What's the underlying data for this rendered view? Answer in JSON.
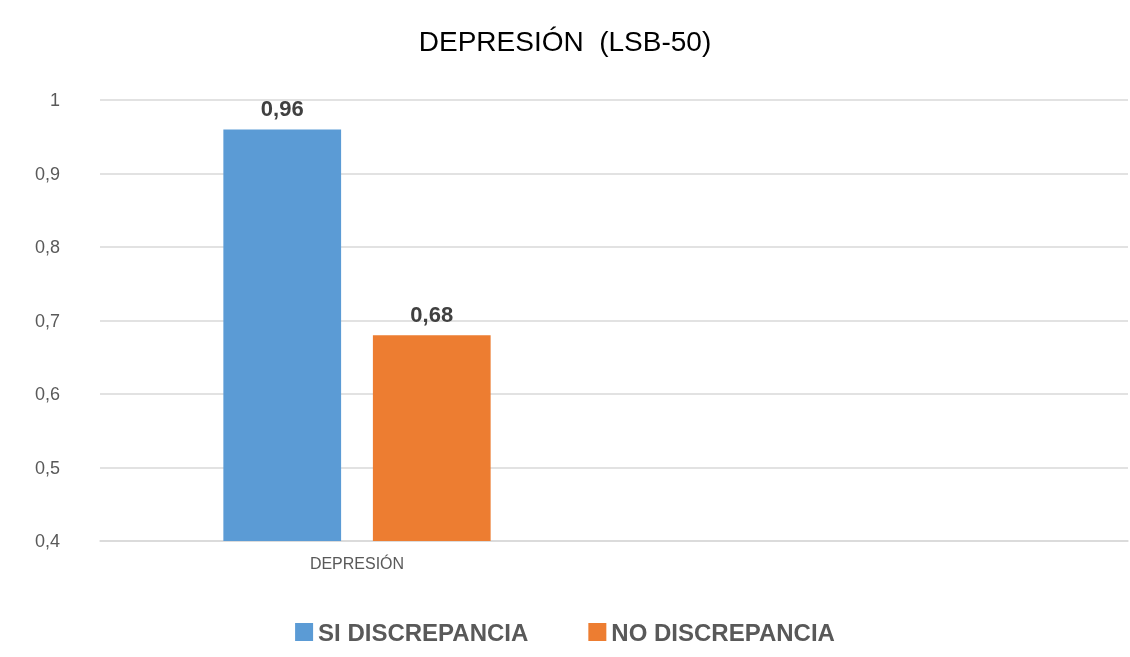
{
  "chart_data": {
    "type": "bar",
    "title": "DEPRESIÓN  (LSB-50)",
    "categories": [
      "DEPRESIÓN",
      null
    ],
    "series": [
      {
        "name": "SI DISCREPANCIA",
        "color": "#5b9bd5",
        "values": [
          0.96,
          null
        ],
        "value_labels": [
          "0,96",
          null
        ]
      },
      {
        "name": "NO DISCREPANCIA",
        "color": "#ed7d31",
        "values": [
          0.68,
          null
        ],
        "value_labels": [
          "0,68",
          null
        ]
      }
    ],
    "ylim": [
      0.4,
      1
    ],
    "yticks": [
      {
        "value": 0.4,
        "label": "0,4"
      },
      {
        "value": 0.5,
        "label": "0,5"
      },
      {
        "value": 0.6,
        "label": "0,6"
      },
      {
        "value": 0.7,
        "label": "0,7"
      },
      {
        "value": 0.8,
        "label": "0,8"
      },
      {
        "value": 0.9,
        "label": "0,9"
      },
      1
    ],
    "grid": "y",
    "legend": "bottom"
  }
}
